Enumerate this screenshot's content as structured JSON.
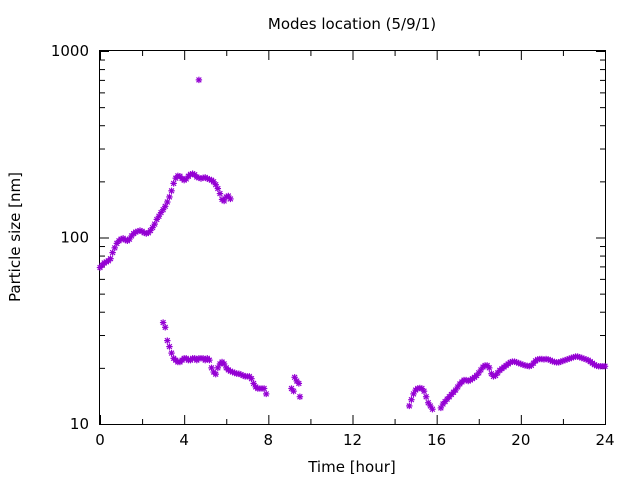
{
  "chart_data": {
    "type": "scatter",
    "title": "Modes location (5/9/1)",
    "xlabel": "Time [hour]",
    "ylabel": "Particle size [nm]",
    "xlim": [
      0,
      24
    ],
    "ylim": [
      10,
      1000
    ],
    "yscale": "log",
    "x_ticks": [
      0,
      4,
      8,
      12,
      16,
      20,
      24
    ],
    "x_tick_labels": [
      "0",
      "4",
      "8",
      "12",
      "16",
      "20",
      "24"
    ],
    "y_ticks": [
      10,
      100,
      1000
    ],
    "y_tick_labels": [
      "10",
      "100",
      "1000"
    ],
    "grid": false,
    "legend": false,
    "marker_color": "#9400d3",
    "series": [
      {
        "points": [
          [
            0.0,
            69
          ],
          [
            0.1,
            71
          ],
          [
            0.2,
            73
          ],
          [
            0.3,
            74
          ],
          [
            0.4,
            75
          ],
          [
            0.5,
            77
          ],
          [
            0.6,
            83
          ],
          [
            0.7,
            88
          ],
          [
            0.8,
            93
          ],
          [
            0.9,
            96
          ],
          [
            1.0,
            98
          ],
          [
            1.1,
            99
          ],
          [
            1.2,
            97
          ],
          [
            1.3,
            96
          ],
          [
            1.4,
            98
          ],
          [
            1.5,
            102
          ],
          [
            1.6,
            105
          ],
          [
            1.7,
            107
          ],
          [
            1.8,
            108
          ],
          [
            1.9,
            109
          ],
          [
            2.0,
            108
          ],
          [
            2.1,
            106
          ],
          [
            2.2,
            105
          ],
          [
            2.3,
            106
          ],
          [
            2.4,
            109
          ],
          [
            2.5,
            113
          ],
          [
            2.6,
            118
          ],
          [
            2.7,
            125
          ],
          [
            2.8,
            130
          ],
          [
            2.9,
            136
          ],
          [
            3.0,
            141
          ],
          [
            3.1,
            147
          ],
          [
            3.2,
            155
          ],
          [
            3.3,
            165
          ],
          [
            3.4,
            178
          ],
          [
            3.5,
            195
          ],
          [
            3.6,
            208
          ],
          [
            3.7,
            214
          ],
          [
            3.8,
            213
          ],
          [
            3.9,
            207
          ],
          [
            4.0,
            203
          ],
          [
            4.1,
            206
          ],
          [
            4.2,
            213
          ],
          [
            4.3,
            218
          ],
          [
            4.4,
            220
          ],
          [
            4.5,
            217
          ],
          [
            4.6,
            211
          ],
          [
            4.7,
            209
          ],
          [
            4.8,
            207
          ],
          [
            4.9,
            209
          ],
          [
            5.0,
            210
          ],
          [
            5.1,
            207
          ],
          [
            5.2,
            205
          ],
          [
            5.3,
            203
          ],
          [
            5.4,
            199
          ],
          [
            5.5,
            192
          ],
          [
            5.6,
            183
          ],
          [
            5.7,
            172
          ],
          [
            5.8,
            160
          ],
          [
            5.9,
            157
          ],
          [
            6.0,
            165
          ],
          [
            6.1,
            167
          ],
          [
            6.2,
            161
          ],
          [
            4.7,
            700
          ]
        ]
      },
      {
        "points": [
          [
            3.0,
            35
          ],
          [
            3.1,
            33
          ],
          [
            3.2,
            28
          ],
          [
            3.3,
            26
          ],
          [
            3.4,
            24
          ],
          [
            3.5,
            22.5
          ],
          [
            3.6,
            22
          ],
          [
            3.7,
            21.5
          ],
          [
            3.8,
            21.5
          ],
          [
            3.9,
            22
          ],
          [
            4.0,
            22.5
          ],
          [
            4.1,
            22.5
          ],
          [
            4.2,
            22
          ],
          [
            4.3,
            22
          ],
          [
            4.4,
            22.5
          ],
          [
            4.5,
            22.5
          ],
          [
            4.6,
            22
          ],
          [
            4.7,
            22.5
          ],
          [
            4.8,
            22.5
          ],
          [
            4.9,
            22.5
          ],
          [
            5.0,
            22
          ],
          [
            5.1,
            22.5
          ],
          [
            5.2,
            22
          ],
          [
            5.3,
            20
          ],
          [
            5.4,
            19
          ],
          [
            5.5,
            18.5
          ],
          [
            5.6,
            20
          ],
          [
            5.7,
            21
          ],
          [
            5.8,
            21.5
          ],
          [
            5.9,
            21
          ],
          [
            6.0,
            20
          ],
          [
            6.1,
            19.5
          ],
          [
            6.2,
            19.2
          ],
          [
            6.3,
            19
          ],
          [
            6.4,
            18.8
          ],
          [
            6.5,
            18.6
          ],
          [
            6.6,
            18.6
          ],
          [
            6.7,
            18.4
          ],
          [
            6.8,
            18.2
          ],
          [
            6.9,
            18
          ],
          [
            7.0,
            18
          ],
          [
            7.1,
            18
          ],
          [
            7.2,
            17.5
          ],
          [
            7.3,
            16.5
          ],
          [
            7.4,
            15.8
          ],
          [
            7.5,
            15.5
          ],
          [
            7.6,
            15.5
          ],
          [
            7.7,
            15.5
          ],
          [
            7.8,
            15.5
          ],
          [
            7.9,
            14.5
          ],
          [
            9.1,
            15.5
          ],
          [
            9.2,
            15
          ],
          [
            9.25,
            17.8
          ],
          [
            9.35,
            17
          ],
          [
            9.45,
            16.5
          ],
          [
            9.5,
            14
          ]
        ]
      },
      {
        "points": [
          [
            14.7,
            12.5
          ],
          [
            14.8,
            13.5
          ],
          [
            14.9,
            14.5
          ],
          [
            15.0,
            15.2
          ],
          [
            15.1,
            15.5
          ],
          [
            15.2,
            15.6
          ],
          [
            15.3,
            15.5
          ],
          [
            15.4,
            15
          ],
          [
            15.5,
            14
          ],
          [
            15.6,
            13
          ],
          [
            15.7,
            12.5
          ],
          [
            15.8,
            12
          ],
          [
            16.2,
            12.2
          ],
          [
            16.3,
            12.8
          ],
          [
            16.4,
            13.2
          ],
          [
            16.5,
            13.6
          ],
          [
            16.6,
            14
          ],
          [
            16.7,
            14.4
          ],
          [
            16.8,
            14.8
          ],
          [
            16.9,
            15.2
          ],
          [
            17.0,
            15.8
          ],
          [
            17.1,
            16.4
          ],
          [
            17.2,
            16.8
          ],
          [
            17.3,
            17.2
          ],
          [
            17.4,
            17.2
          ],
          [
            17.5,
            17
          ],
          [
            17.6,
            17.2
          ],
          [
            17.7,
            17.5
          ],
          [
            17.8,
            17.8
          ],
          [
            17.9,
            18.2
          ],
          [
            18.0,
            18.8
          ],
          [
            18.1,
            19.5
          ],
          [
            18.2,
            20.2
          ],
          [
            18.3,
            20.6
          ],
          [
            18.4,
            20.6
          ],
          [
            18.5,
            20
          ],
          [
            18.6,
            18.6
          ],
          [
            18.7,
            18
          ],
          [
            18.8,
            18.2
          ],
          [
            18.9,
            18.8
          ],
          [
            19.0,
            19.4
          ],
          [
            19.1,
            19.8
          ],
          [
            19.2,
            20.2
          ],
          [
            19.3,
            20.6
          ],
          [
            19.4,
            21
          ],
          [
            19.5,
            21.4
          ],
          [
            19.6,
            21.6
          ],
          [
            19.7,
            21.6
          ],
          [
            19.8,
            21.4
          ],
          [
            19.9,
            21.2
          ],
          [
            20.0,
            21
          ],
          [
            20.1,
            20.8
          ],
          [
            20.2,
            20.6
          ],
          [
            20.3,
            20.5
          ],
          [
            20.4,
            20.4
          ],
          [
            20.5,
            20.6
          ],
          [
            20.6,
            21.2
          ],
          [
            20.7,
            21.8
          ],
          [
            20.8,
            22.2
          ],
          [
            20.9,
            22.3
          ],
          [
            21.0,
            22.3
          ],
          [
            21.1,
            22.2
          ],
          [
            21.2,
            22.3
          ],
          [
            21.3,
            22.2
          ],
          [
            21.4,
            22
          ],
          [
            21.5,
            21.7
          ],
          [
            21.6,
            21.5
          ],
          [
            21.7,
            21.4
          ],
          [
            21.8,
            21.4
          ],
          [
            21.9,
            21.6
          ],
          [
            22.0,
            21.8
          ],
          [
            22.1,
            22
          ],
          [
            22.2,
            22.2
          ],
          [
            22.3,
            22.4
          ],
          [
            22.4,
            22.6
          ],
          [
            22.5,
            22.8
          ],
          [
            22.6,
            23
          ],
          [
            22.7,
            23
          ],
          [
            22.8,
            22.8
          ],
          [
            22.9,
            22.6
          ],
          [
            23.0,
            22.4
          ],
          [
            23.1,
            22.2
          ],
          [
            23.2,
            22
          ],
          [
            23.3,
            21.6
          ],
          [
            23.4,
            21.2
          ],
          [
            23.5,
            20.8
          ],
          [
            23.6,
            20.5
          ],
          [
            23.7,
            20.4
          ],
          [
            23.8,
            20.4
          ],
          [
            23.9,
            20.4
          ],
          [
            24.0,
            20.4
          ]
        ]
      }
    ]
  }
}
